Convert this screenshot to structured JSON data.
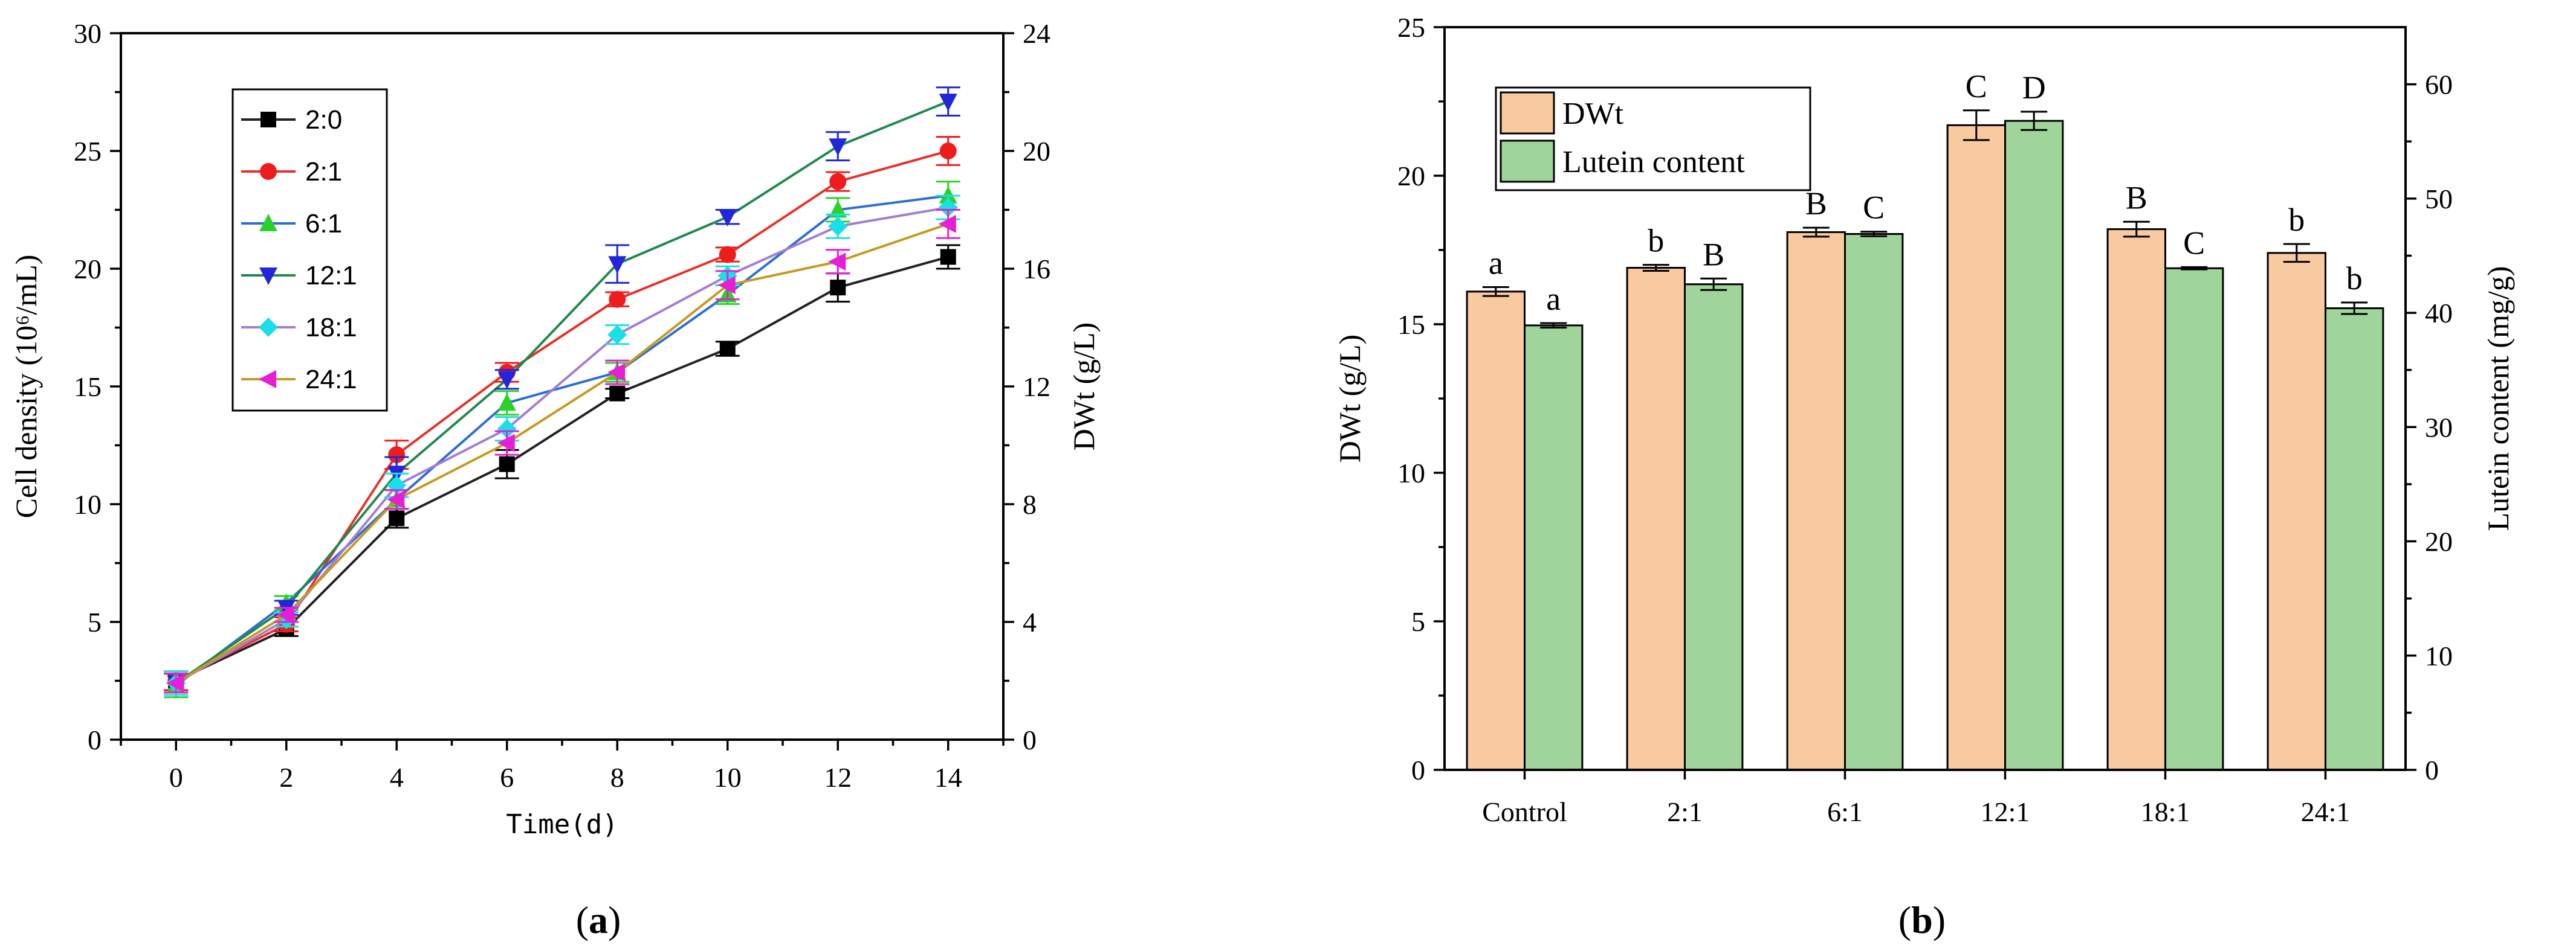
{
  "panels": {
    "a": "(a)",
    "b": "(b)"
  },
  "chart_data": [
    {
      "type": "line",
      "xlabel": "Time(d)",
      "ylabel": "Cell density (10⁶/mL)",
      "ylabel_right": "DWt (g/L)",
      "x": [
        0,
        2,
        4,
        6,
        8,
        10,
        12,
        14
      ],
      "xlim": [
        -1,
        15
      ],
      "ylim": [
        0,
        30
      ],
      "ylim_right": [
        0,
        24
      ],
      "xticks": [
        "0",
        "2",
        "4",
        "6",
        "8",
        "10",
        "12",
        "14"
      ],
      "yticks": [
        "0",
        "5",
        "10",
        "15",
        "20",
        "25",
        "30"
      ],
      "yticks_right": [
        "0",
        "4",
        "8",
        "12",
        "16",
        "20",
        "24"
      ],
      "legend_position": "top-left",
      "series": [
        {
          "name": "2:0",
          "color": "#222222",
          "marker": "square",
          "values": [
            2.5,
            4.7,
            9.4,
            11.7,
            14.7,
            16.6,
            19.2,
            20.5
          ],
          "errors": [
            0.4,
            0.3,
            0.4,
            0.6,
            0.2,
            0.3,
            0.6,
            0.5
          ]
        },
        {
          "name": "2:1",
          "color": "#e8312b",
          "marker": "circle",
          "values": [
            2.5,
            4.9,
            12.1,
            15.6,
            18.7,
            20.6,
            23.7,
            25.0
          ],
          "errors": [
            0.4,
            0.3,
            0.6,
            0.4,
            0.3,
            0.3,
            0.4,
            0.6
          ]
        },
        {
          "name": "6:1",
          "color": "#2a6fd6",
          "marker": "triangle-up",
          "values": [
            2.3,
            5.8,
            10.2,
            14.3,
            15.6,
            18.9,
            22.5,
            23.1
          ],
          "errors": [
            0.5,
            0.3,
            0.4,
            0.5,
            0.4,
            0.4,
            0.5,
            0.6
          ]
        },
        {
          "name": "12:1",
          "color": "#1f8a4c",
          "marker": "triangle-down",
          "values": [
            2.4,
            5.6,
            11.3,
            15.3,
            20.2,
            22.2,
            25.2,
            27.1
          ],
          "errors": [
            0.4,
            0.3,
            0.7,
            0.4,
            0.8,
            0.3,
            0.6,
            0.6
          ]
        },
        {
          "name": "18:1",
          "color": "#a57cd6",
          "marker": "diamond",
          "values": [
            2.4,
            5.1,
            10.8,
            13.2,
            17.2,
            19.7,
            21.8,
            22.6
          ],
          "errors": [
            0.5,
            0.3,
            0.5,
            0.5,
            0.4,
            0.4,
            0.5,
            0.5
          ]
        },
        {
          "name": "24:1",
          "color": "#c79a1e",
          "marker": "triangle-left",
          "values": [
            2.4,
            5.3,
            10.2,
            12.6,
            15.6,
            19.3,
            20.3,
            21.9
          ],
          "errors": [
            0.4,
            0.3,
            0.4,
            0.5,
            0.5,
            0.6,
            0.5,
            0.6
          ]
        }
      ],
      "marker_colors": {
        "2:0": "#000000",
        "2:1": "#ee1c1c",
        "6:1": "#2bd12b",
        "12:1": "#2326d8",
        "18:1": "#19e0e6",
        "24:1": "#e61fd6"
      }
    },
    {
      "type": "bar",
      "ylabel": "DWt (g/L)",
      "ylabel_right": "Lutein content (mg/g)",
      "categories": [
        "Control",
        "2:1",
        "6:1",
        "12:1",
        "18:1",
        "24:1"
      ],
      "ylim": [
        0,
        25
      ],
      "ylim_right": [
        0,
        65
      ],
      "yticks": [
        "0",
        "5",
        "10",
        "15",
        "20",
        "25"
      ],
      "yticks_right": [
        "0",
        "10",
        "20",
        "30",
        "40",
        "50",
        "60"
      ],
      "legend_position": "top-left",
      "series": [
        {
          "name": "DWt",
          "color": "#f9c9a0",
          "axis": "left",
          "values": [
            16.1,
            16.9,
            18.1,
            21.7,
            18.2,
            17.4
          ],
          "errors": [
            0.15,
            0.1,
            0.15,
            0.5,
            0.25,
            0.3
          ],
          "letters": [
            "a",
            "b",
            "B",
            "C",
            "B",
            "b"
          ]
        },
        {
          "name": "Lutein content",
          "color": "#9fd49b",
          "axis": "right",
          "values": [
            38.9,
            42.5,
            46.9,
            56.8,
            43.9,
            40.4
          ],
          "errors": [
            0.2,
            0.5,
            0.2,
            0.8,
            0.1,
            0.5
          ],
          "letters": [
            "a",
            "B",
            "C",
            "D",
            "C",
            "b"
          ]
        }
      ]
    }
  ]
}
